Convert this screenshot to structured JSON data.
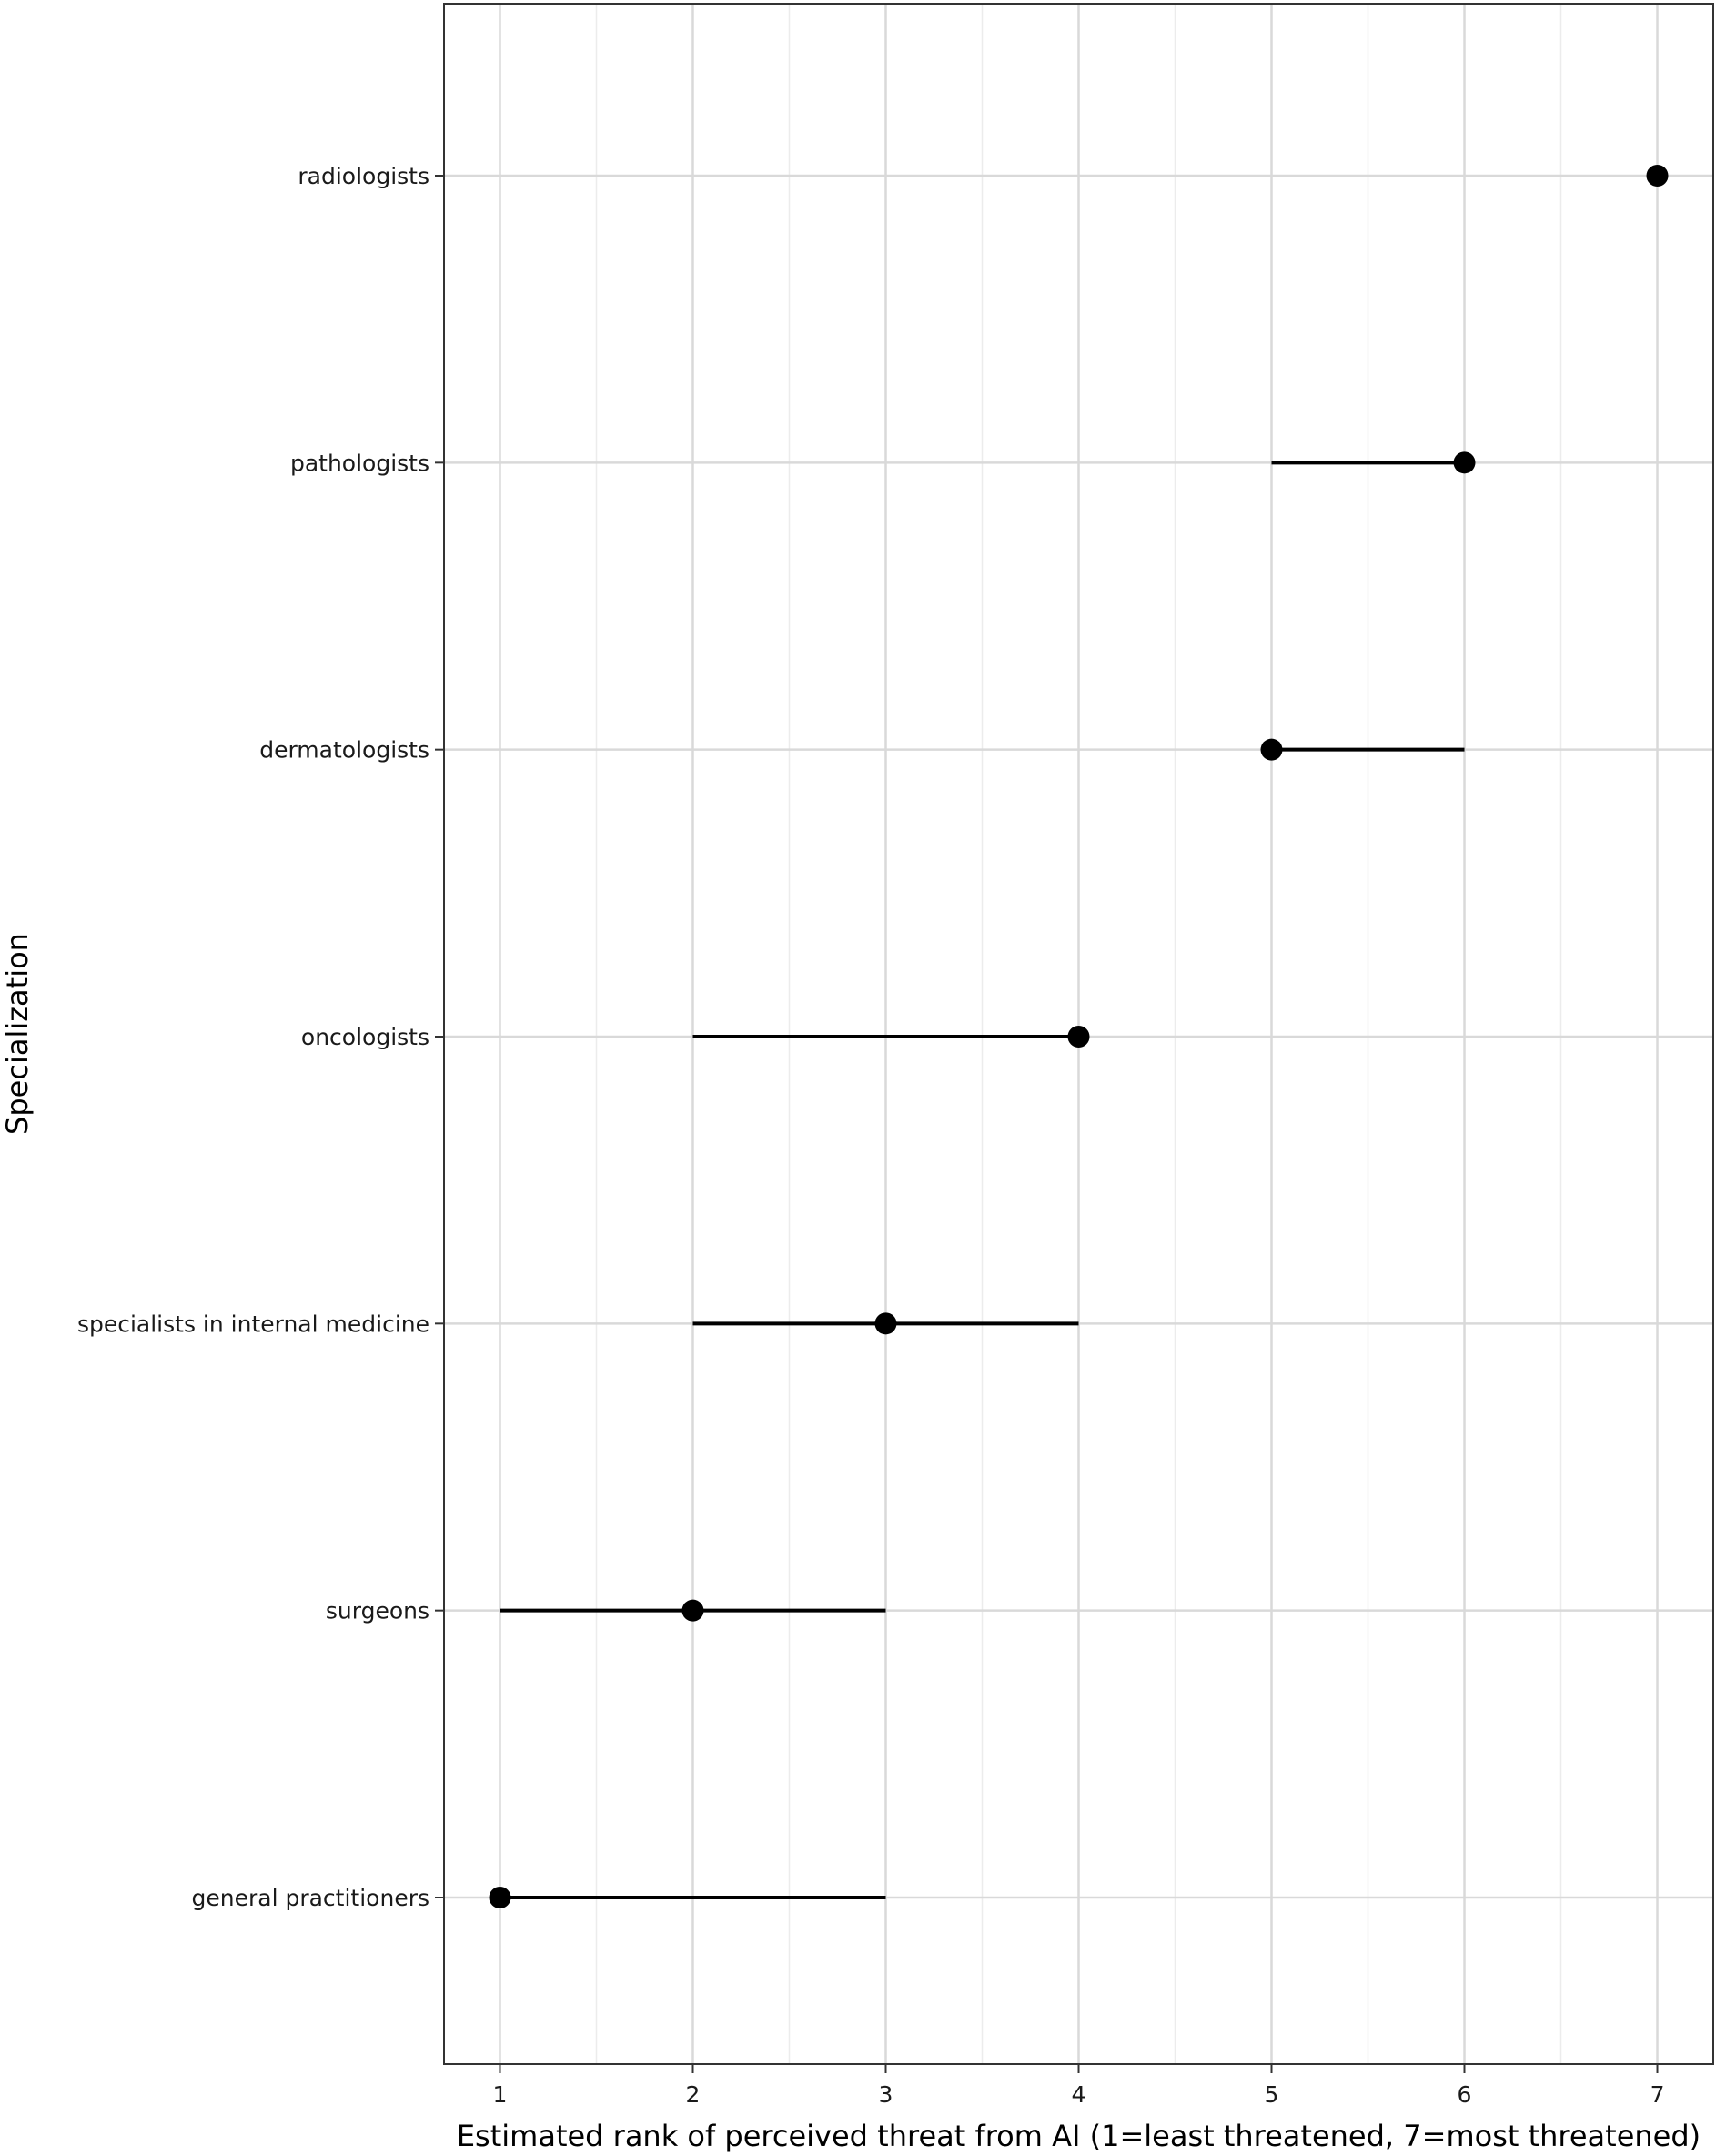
{
  "chart_data": {
    "type": "dot-range",
    "xlabel": "Estimated rank of perceived threat from AI (1=least threatened, 7=most threatened)",
    "ylabel": "Specialization",
    "xlim": [
      0.71,
      7.29
    ],
    "x_ticks": [
      1,
      2,
      3,
      4,
      5,
      6,
      7
    ],
    "grid": true,
    "legend": "none",
    "categories": [
      "general practitioners",
      "surgeons",
      "specialists in internal medicine",
      "oncologists",
      "dermatologists",
      "pathologists",
      "radiologists"
    ],
    "points": [
      {
        "category": "general practitioners",
        "estimate": 1,
        "low": 1,
        "high": 3
      },
      {
        "category": "surgeons",
        "estimate": 2,
        "low": 1,
        "high": 3
      },
      {
        "category": "specialists in internal medicine",
        "estimate": 3,
        "low": 2,
        "high": 4
      },
      {
        "category": "oncologists",
        "estimate": 4,
        "low": 2,
        "high": 4
      },
      {
        "category": "dermatologists",
        "estimate": 5,
        "low": 5,
        "high": 6
      },
      {
        "category": "pathologists",
        "estimate": 6,
        "low": 5,
        "high": 6
      },
      {
        "category": "radiologists",
        "estimate": 7,
        "low": 7,
        "high": 7
      }
    ],
    "colors": {
      "marks": "#000000",
      "grid_major": "#d9d9d9",
      "grid_minor": "#ececec",
      "panel_border": "#333333"
    }
  }
}
